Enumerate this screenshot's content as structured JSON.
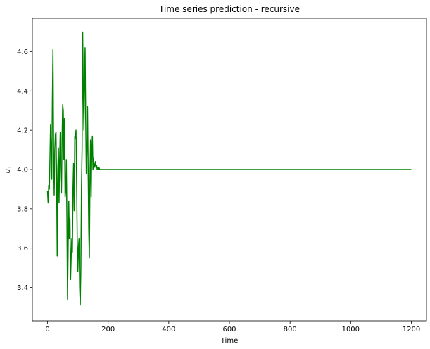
{
  "chart_data": {
    "type": "line",
    "title": "Time series prediction - recursive",
    "xlabel": "Time",
    "ylabel": "u",
    "ylabel_subscript": "1",
    "xlim": [
      -50,
      1250
    ],
    "ylim": [
      3.23,
      4.77
    ],
    "xticks": [
      0,
      200,
      400,
      600,
      800,
      1000,
      1200
    ],
    "xtick_labels": [
      "0",
      "200",
      "400",
      "600",
      "800",
      "1000",
      "1200"
    ],
    "yticks": [
      3.4,
      3.6,
      3.8,
      4.0,
      4.2,
      4.4,
      4.6
    ],
    "ytick_labels": [
      "3.4",
      "3.6",
      "3.8",
      "4.0",
      "4.2",
      "4.4",
      "4.6"
    ],
    "grid": false,
    "series": [
      {
        "color": "#008000",
        "x": [
          0,
          2,
          4,
          6,
          8,
          10,
          12,
          14,
          16,
          18,
          20,
          22,
          24,
          26,
          28,
          30,
          32,
          34,
          36,
          38,
          40,
          42,
          44,
          46,
          48,
          50,
          52,
          54,
          56,
          58,
          60,
          62,
          64,
          66,
          68,
          70,
          72,
          74,
          76,
          78,
          80,
          82,
          84,
          86,
          88,
          90,
          92,
          94,
          96,
          98,
          100,
          102,
          104,
          106,
          108,
          110,
          112,
          114,
          116,
          118,
          120,
          122,
          124,
          126,
          128,
          130,
          132,
          134,
          136,
          138,
          140,
          142,
          144,
          146,
          148,
          150,
          152,
          154,
          156,
          158,
          160,
          162,
          164,
          166,
          168,
          170,
          172,
          174,
          176,
          178,
          180,
          182,
          184,
          186,
          188,
          190,
          192,
          194,
          196,
          198,
          200,
          202,
          204,
          206,
          208,
          210,
          215,
          220,
          230,
          250,
          300,
          400,
          600,
          800,
          1000,
          1200
        ],
        "y": [
          3.89,
          3.83,
          3.92,
          3.9,
          4.05,
          4.23,
          4.1,
          3.95,
          4.35,
          4.61,
          4.1,
          3.87,
          4.1,
          4.18,
          4.19,
          3.95,
          3.56,
          4.0,
          4.11,
          3.83,
          4.05,
          4.19,
          3.95,
          3.88,
          4.15,
          4.33,
          4.3,
          4.05,
          4.26,
          3.86,
          3.89,
          4.05,
          3.75,
          3.34,
          3.6,
          3.84,
          3.65,
          3.75,
          3.44,
          3.55,
          3.65,
          3.58,
          3.9,
          4.03,
          3.79,
          4.17,
          4.16,
          4.2,
          3.95,
          3.65,
          3.48,
          3.6,
          3.65,
          3.4,
          3.31,
          3.5,
          3.9,
          4.1,
          4.7,
          4.4,
          4.2,
          4.45,
          4.62,
          4.25,
          3.98,
          4.1,
          4.32,
          4.0,
          3.7,
          3.55,
          3.95,
          4.15,
          3.86,
          4.1,
          4.17,
          4.0,
          4.06,
          4.01,
          4.02,
          4.04,
          4.01,
          4.02,
          4.0,
          4.01,
          4.0,
          4.01,
          4.0,
          4.0,
          4.0,
          4.0,
          4.0,
          4.0,
          4.0,
          4.0,
          4.0,
          4.0,
          4.0,
          4.0,
          4.0,
          4.0,
          4.0,
          4.0,
          4.0,
          4.0,
          4.0,
          4.0,
          4.0,
          4.0,
          4.0,
          4.0,
          4.0,
          4.0,
          4.0,
          4.0,
          4.0,
          4.0
        ]
      }
    ]
  }
}
